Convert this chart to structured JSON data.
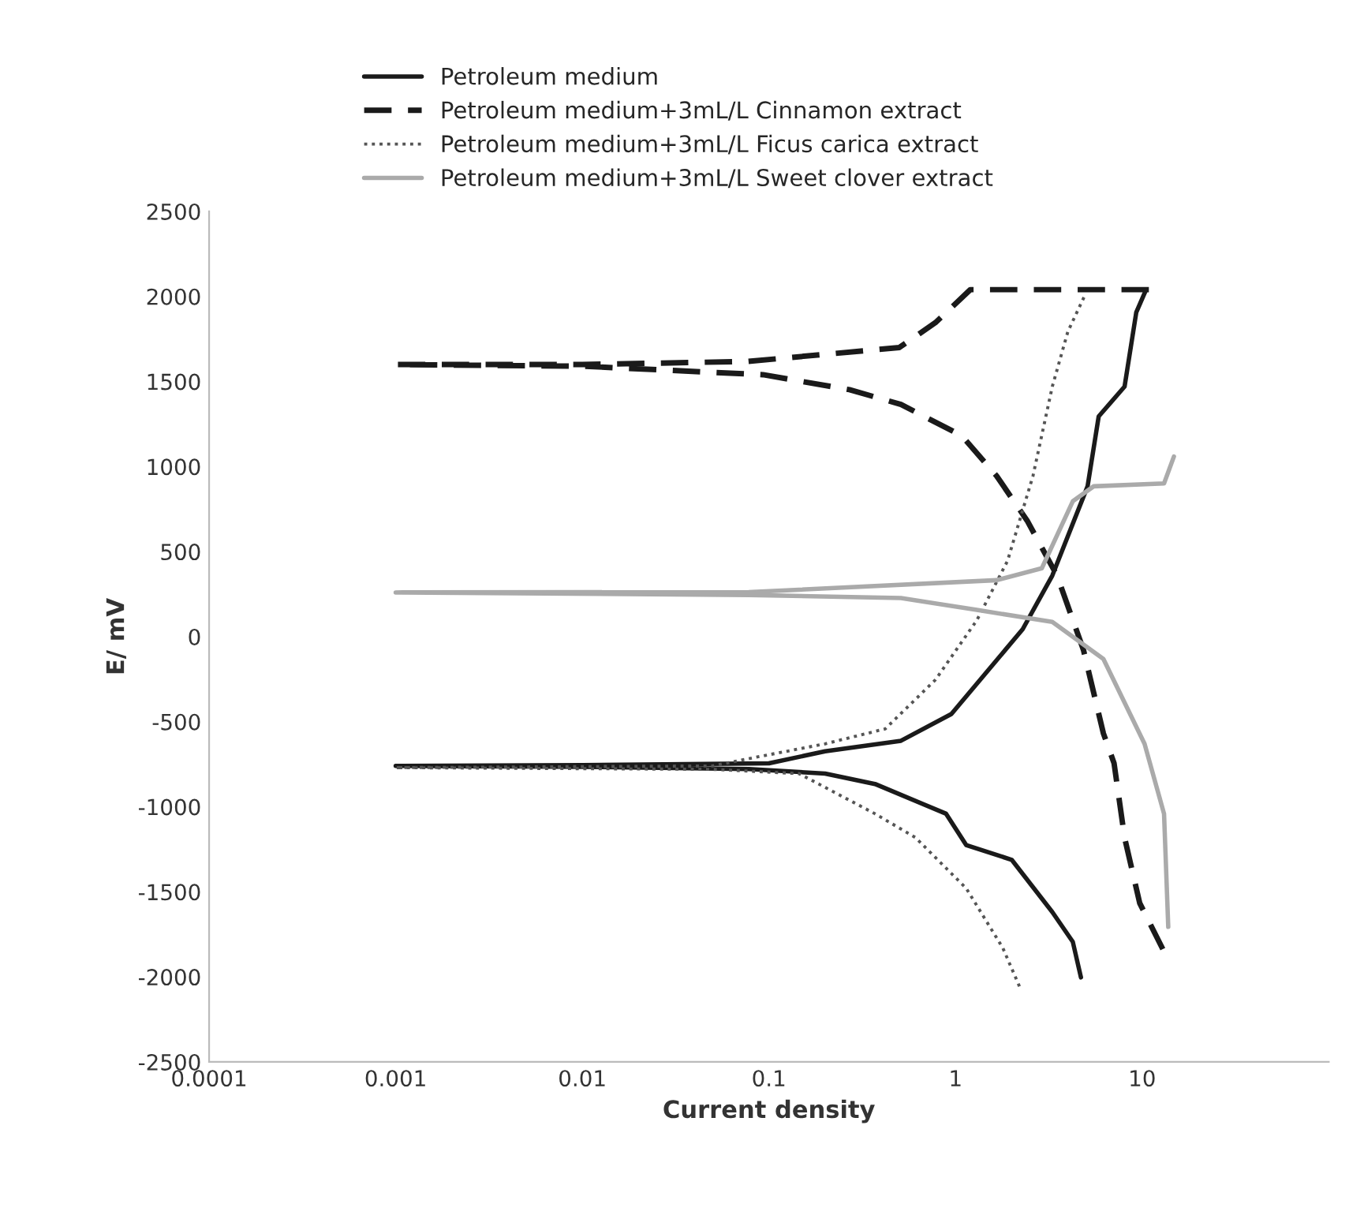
{
  "chart_data": {
    "type": "line",
    "xlabel": "Current density",
    "ylabel": "E/ mV",
    "log": "x",
    "xlim": [
      0.0001,
      100
    ],
    "xticks": [
      0.0001,
      0.001,
      0.01,
      0.1,
      1,
      10
    ],
    "ylim": [
      -2500,
      2500
    ],
    "yticks": [
      -2500,
      -2000,
      -1500,
      -1000,
      -500,
      0,
      500,
      1000,
      1500,
      2000,
      2500
    ],
    "grid": false,
    "legend": "top left",
    "series": [
      {
        "name": "Petroleum medium",
        "color": "#1a1a1a",
        "line_style": "solid",
        "x": [
          4.7,
          4.25,
          3.3,
          2.0,
          1.14,
          0.89,
          0.37,
          0.2,
          0.078,
          0.01,
          0.001,
          0.01,
          0.1,
          0.2,
          0.51,
          0.95,
          2.29,
          3.3,
          5.1,
          5.85,
          8.05,
          9.3,
          10.5
        ],
        "values": [
          -2003,
          -1794,
          -1619,
          -1312,
          -1225,
          -1041,
          -866,
          -805,
          -778,
          -765,
          -760,
          -755,
          -745,
          -674,
          -612,
          -455,
          44,
          359,
          884,
          1295,
          1470,
          1907,
          2040
        ]
      },
      {
        "name": "Petroleum medium+3mL/L Cinnamon extract",
        "color": "#1a1a1a",
        "line_style": "dashed",
        "x": [
          12.9,
          9.7,
          8.05,
          7.07,
          6.2,
          4.85,
          3.5,
          2.42,
          1.66,
          1.08,
          0.51,
          0.27,
          0.093,
          0.01,
          0.001,
          0.01,
          0.077,
          0.5,
          0.78,
          1.2,
          11
        ],
        "values": [
          -1837,
          -1566,
          -1181,
          -744,
          -569,
          -79,
          359,
          682,
          945,
          1181,
          1365,
          1452,
          1540,
          1590,
          1600,
          1600,
          1618,
          1700,
          1846,
          2040,
          2040
        ]
      },
      {
        "name": "Petroleum medium+3mL/L Ficus carica extract",
        "color": "#555555",
        "line_style": "dotted",
        "x": [
          2.2,
          1.79,
          1.14,
          0.61,
          0.37,
          0.145,
          0.05,
          0.001,
          0.05,
          0.078,
          0.2,
          0.42,
          0.78,
          1.3,
          1.9,
          2.6,
          3.3,
          4.0,
          4.9
        ],
        "values": [
          -2056,
          -1829,
          -1479,
          -1181,
          -1041,
          -805,
          -780,
          -770,
          -760,
          -717,
          -630,
          -542,
          -254,
          96,
          446,
          945,
          1470,
          1794,
          2000
        ]
      },
      {
        "name": "Petroleum medium+3mL/L Sweet clover extract",
        "color": "#aaaaaa",
        "line_style": "solid",
        "x": [
          13.8,
          13.1,
          10.3,
          6.2,
          3.3,
          1.3,
          0.51,
          0.078,
          0.001,
          0.078,
          1.66,
          2.9,
          4.25,
          5.5,
          13.1,
          14.8
        ],
        "values": [
          -1706,
          -1041,
          -630,
          -131,
          87,
          157,
          227,
          245,
          260,
          262,
          332,
          402,
          796,
          884,
          901,
          1059
        ]
      }
    ]
  }
}
